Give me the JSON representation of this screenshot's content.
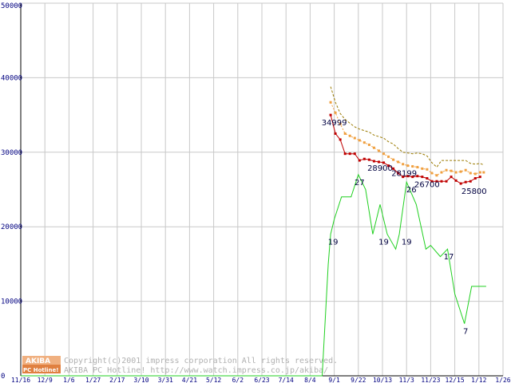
{
  "chart_data": {
    "type": "line",
    "x": [
      "11/16",
      "12/9",
      "1/6",
      "1/27",
      "2/17",
      "3/10",
      "3/31",
      "4/21",
      "5/12",
      "6/2",
      "6/23",
      "7/14",
      "8/4",
      "9/1",
      "9/22",
      "10/13",
      "11/3",
      "11/23",
      "12/15",
      "1/12",
      "1/26"
    ],
    "ylim": [
      0,
      50000
    ],
    "yticks": [
      "0",
      "10000",
      "20000",
      "30000",
      "40000",
      "50000"
    ],
    "grid": true,
    "series": [
      {
        "style": "dashed",
        "color": "#9a7a00",
        "points": [
          [
            12.85,
            38800
          ],
          [
            13.05,
            36700
          ],
          [
            13.25,
            35200
          ],
          [
            13.45,
            34400
          ],
          [
            13.65,
            33900
          ],
          [
            13.85,
            33400
          ],
          [
            14.05,
            33100
          ],
          [
            14.25,
            32900
          ],
          [
            14.45,
            32700
          ],
          [
            14.65,
            32300
          ],
          [
            14.85,
            32100
          ],
          [
            15.05,
            31900
          ],
          [
            15.25,
            31400
          ],
          [
            15.45,
            31100
          ],
          [
            15.65,
            30500
          ],
          [
            15.85,
            30000
          ],
          [
            16.05,
            29900
          ],
          [
            16.25,
            29800
          ],
          [
            16.45,
            29900
          ],
          [
            16.65,
            29800
          ],
          [
            16.85,
            29500
          ],
          [
            17.05,
            28600
          ],
          [
            17.25,
            28000
          ],
          [
            17.45,
            28900
          ],
          [
            17.65,
            28900
          ],
          [
            17.85,
            28900
          ],
          [
            18.05,
            28900
          ],
          [
            18.25,
            28900
          ],
          [
            18.45,
            28900
          ],
          [
            18.65,
            28500
          ],
          [
            18.85,
            28400
          ],
          [
            19.05,
            28500
          ],
          [
            19.2,
            28300
          ]
        ]
      },
      {
        "style": "dotted-markers",
        "color": "#f0a040",
        "points": [
          [
            12.85,
            36700
          ],
          [
            13.05,
            35300
          ],
          [
            13.25,
            33800
          ],
          [
            13.45,
            32500
          ],
          [
            13.65,
            32200
          ],
          [
            13.85,
            31900
          ],
          [
            14.05,
            31600
          ],
          [
            14.25,
            31300
          ],
          [
            14.45,
            31000
          ],
          [
            14.65,
            30600
          ],
          [
            14.85,
            30200
          ],
          [
            15.05,
            29800
          ],
          [
            15.25,
            29400
          ],
          [
            15.45,
            29000
          ],
          [
            15.65,
            28700
          ],
          [
            15.85,
            28400
          ],
          [
            16.05,
            28200
          ],
          [
            16.25,
            28100
          ],
          [
            16.45,
            28000
          ],
          [
            16.65,
            27800
          ],
          [
            16.85,
            27700
          ],
          [
            17.05,
            27200
          ],
          [
            17.25,
            26900
          ],
          [
            17.45,
            27300
          ],
          [
            17.65,
            27600
          ],
          [
            17.85,
            27500
          ],
          [
            18.05,
            27300
          ],
          [
            18.25,
            27400
          ],
          [
            18.45,
            27600
          ],
          [
            18.65,
            27200
          ],
          [
            18.85,
            27100
          ],
          [
            19.05,
            27300
          ],
          [
            19.2,
            27300
          ]
        ]
      },
      {
        "style": "solid-markers",
        "color": "#c00000",
        "points": [
          [
            12.85,
            34999
          ],
          [
            13.05,
            32500
          ],
          [
            13.25,
            31700
          ],
          [
            13.45,
            29800
          ],
          [
            13.65,
            29800
          ],
          [
            13.85,
            29800
          ],
          [
            14.05,
            28900
          ],
          [
            14.25,
            29100
          ],
          [
            14.45,
            29000
          ],
          [
            14.65,
            28800
          ],
          [
            14.85,
            28700
          ],
          [
            15.05,
            28600
          ],
          [
            15.25,
            28199
          ],
          [
            15.45,
            27800
          ],
          [
            15.65,
            27200
          ],
          [
            15.85,
            26700
          ],
          [
            16.05,
            26800
          ],
          [
            16.25,
            26700
          ],
          [
            16.45,
            26800
          ],
          [
            16.65,
            26700
          ],
          [
            16.85,
            26500
          ],
          [
            17.05,
            26100
          ],
          [
            17.25,
            26100
          ],
          [
            17.45,
            26100
          ],
          [
            17.65,
            26100
          ],
          [
            17.85,
            26700
          ],
          [
            18.05,
            26200
          ],
          [
            18.25,
            25800
          ],
          [
            18.45,
            26000
          ],
          [
            18.65,
            26100
          ],
          [
            18.85,
            26500
          ],
          [
            19.05,
            26700
          ]
        ]
      },
      {
        "style": "solid",
        "color": "#20d020",
        "points": [
          [
            0,
            0
          ],
          [
            12.5,
            0
          ],
          [
            12.75,
            15000
          ],
          [
            12.85,
            19000
          ],
          [
            13.0,
            21000
          ],
          [
            13.3,
            24000
          ],
          [
            13.7,
            24000
          ],
          [
            14.0,
            27000
          ],
          [
            14.3,
            25000
          ],
          [
            14.6,
            19000
          ],
          [
            14.9,
            23000
          ],
          [
            15.2,
            19000
          ],
          [
            15.55,
            17000
          ],
          [
            15.7,
            19000
          ],
          [
            16.0,
            26000
          ],
          [
            16.4,
            23000
          ],
          [
            16.8,
            17000
          ],
          [
            17.0,
            17500
          ],
          [
            17.4,
            16000
          ],
          [
            17.7,
            17000
          ],
          [
            18.0,
            11000
          ],
          [
            18.4,
            7000
          ],
          [
            18.7,
            12000
          ],
          [
            19.3,
            12000
          ]
        ]
      }
    ],
    "data_labels": [
      {
        "text": "34999",
        "x": 13.0,
        "y": 34999
      },
      {
        "text": "28900",
        "x": 14.9,
        "y": 28900
      },
      {
        "text": "28199",
        "x": 15.9,
        "y": 28199
      },
      {
        "text": "26700",
        "x": 16.85,
        "y": 26700
      },
      {
        "text": "25800",
        "x": 18.8,
        "y": 25800
      },
      {
        "text": "19",
        "x": 12.95,
        "y": 19000
      },
      {
        "text": "27",
        "x": 14.05,
        "y": 27000
      },
      {
        "text": "19",
        "x": 15.05,
        "y": 19000
      },
      {
        "text": "19",
        "x": 16.0,
        "y": 19000
      },
      {
        "text": "26",
        "x": 16.2,
        "y": 26000
      },
      {
        "text": "17",
        "x": 17.75,
        "y": 17000
      },
      {
        "text": "7",
        "x": 18.45,
        "y": 7000
      }
    ]
  },
  "credit": {
    "line1": "Copyright(c)2001 impress corporation All rights reserved.",
    "line2": "AKIBA PC Hotline!  http://www.watch.impress.co.jp/akiba/"
  },
  "logo": {
    "top": "AKIBA",
    "bottom": "PC Hotline!"
  }
}
